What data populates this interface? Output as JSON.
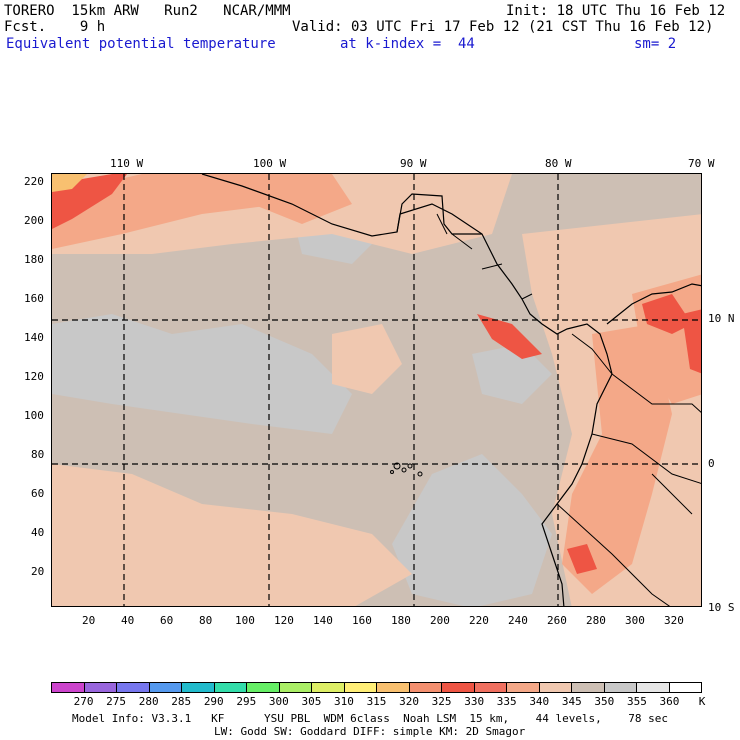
{
  "header": {
    "model": "TORERO  15km ARW   Run2   NCAR/MMM",
    "init": "Init: 18 UTC Thu 16 Feb 12",
    "fcst": "Fcst.    9 h",
    "valid": "Valid: 03 UTC Fri 17 Feb 12 (21 CST Thu 16 Feb 12)",
    "field": "Equivalent potential temperature",
    "level": "at k-index =  44",
    "smooth": "sm= 2"
  },
  "map": {
    "top_labels": [
      "110 W",
      "100 W",
      "90 W",
      "80 W",
      "70 W"
    ],
    "right_labels": [
      "10 N",
      "0",
      "10 S"
    ],
    "y_ticks": [
      "220",
      "200",
      "180",
      "160",
      "140",
      "120",
      "100",
      "80",
      "60",
      "40",
      "20"
    ],
    "x_ticks": [
      "20",
      "40",
      "60",
      "80",
      "100",
      "120",
      "140",
      "160",
      "180",
      "200",
      "220",
      "240",
      "260",
      "280",
      "300",
      "320"
    ]
  },
  "colorbar": {
    "labels": [
      "270",
      "275",
      "280",
      "285",
      "290",
      "295",
      "300",
      "305",
      "310",
      "315",
      "320",
      "325",
      "330",
      "335",
      "340",
      "345",
      "350",
      "355",
      "360",
      "K"
    ],
    "colors": [
      "#cc44cc",
      "#9966dd",
      "#7777ee",
      "#5599ee",
      "#22bbcc",
      "#33ddaa",
      "#66ee66",
      "#aaee66",
      "#ddee66",
      "#ffee77",
      "#f8c070",
      "#f49070",
      "#ee5544",
      "#f07060",
      "#f4a888",
      "#f0c8b0",
      "#cdbfb4",
      "#c8c8c8",
      "#e6e6e6",
      "#ffffff"
    ]
  },
  "footer": {
    "line1": "Model Info: V3.3.1   KF      YSU PBL  WDM 6class  Noah LSM  15 km,    44 levels,    78 sec",
    "line2": "LW: Godd SW: Goddard DIFF: simple KM: 2D Smagor"
  }
}
